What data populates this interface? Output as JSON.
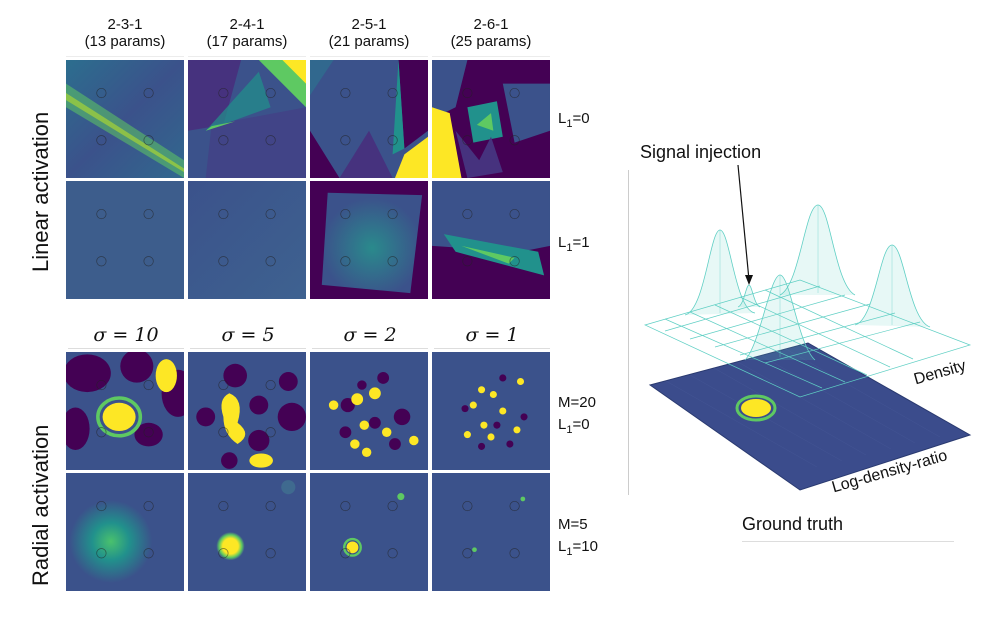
{
  "columns": [
    {
      "arch": "2-3-1",
      "params": "(13 params)"
    },
    {
      "arch": "2-4-1",
      "params": "(17 params)"
    },
    {
      "arch": "2-5-1",
      "params": "(21 params)"
    },
    {
      "arch": "2-6-1",
      "params": "(25 params)"
    }
  ],
  "sigmas": [
    "σ = 10",
    "σ = 5",
    "σ = 2",
    "σ = 1"
  ],
  "sections": {
    "linear": "Linear activation",
    "radial": "Radial activation"
  },
  "row_labels": {
    "lin_row1": {
      "l1": "L",
      "sub": "1",
      "val": "=0"
    },
    "lin_row2": {
      "l1": "L",
      "sub": "1",
      "val": "=1"
    },
    "rad_row1": {
      "m": "M=20",
      "l1": "L",
      "sub": "1",
      "val": "=0"
    },
    "rad_row2": {
      "m": "M=5",
      "l1": "L",
      "sub": "1",
      "val": "=10"
    }
  },
  "ground_truth": {
    "signal_injection": "Signal injection",
    "density": "Density",
    "log_density_ratio": "Log-density-ratio",
    "caption": "Ground truth"
  },
  "colors": {
    "dark": "#440154",
    "mid": "#3b528b",
    "teal": "#21918c",
    "green": "#5ec962",
    "yellow": "#fde725",
    "mesh": "#5fcfc4"
  }
}
